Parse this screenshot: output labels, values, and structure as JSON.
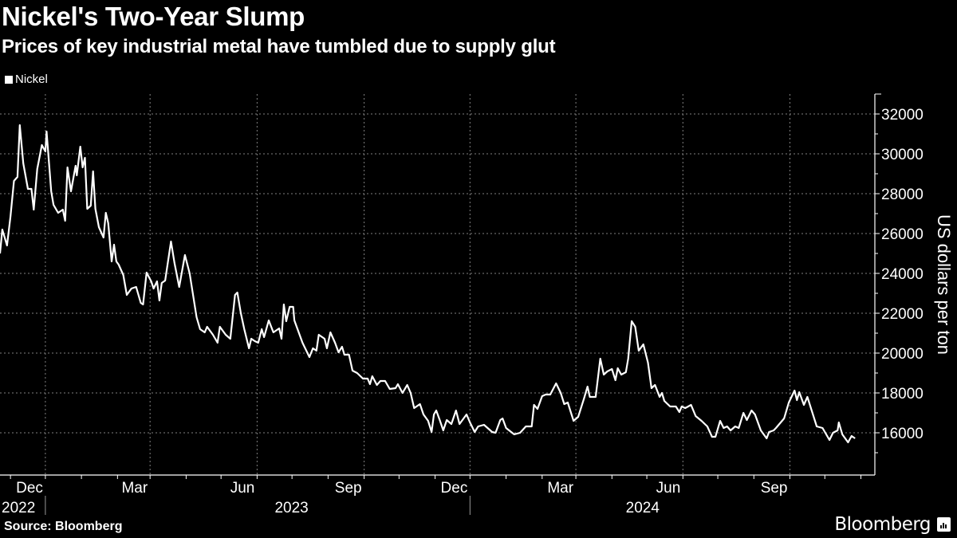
{
  "header": {
    "title": "Nickel's Two-Year Slump",
    "subtitle": "Prices of key industrial metal have tumbled due to supply glut"
  },
  "footer": {
    "source": "Source: Bloomberg",
    "brand": "Bloomberg"
  },
  "colors": {
    "background": "#000000",
    "line": "#ffffff",
    "grid": "#7f7f7f"
  },
  "chart_data": {
    "type": "line",
    "title": "Nickel's Two-Year Slump",
    "subtitle": "Prices of key industrial metal have tumbled due to supply glut",
    "ylabel": "US dollars per ton",
    "xlabel": "",
    "legend": {
      "position": "top-left",
      "entries": [
        "Nickel"
      ]
    },
    "grid": true,
    "y_axis_side": "right",
    "ylim": [
      13880,
      33000
    ],
    "xlim": [
      "2022-10-23",
      "2024-11-13"
    ],
    "y_ticks": [
      "16000",
      "18000",
      "20000",
      "22000",
      "24000",
      "26000",
      "28000",
      "30000",
      "32000"
    ],
    "x_ticks": [
      {
        "date": "2022-12-01",
        "label": "Dec"
      },
      {
        "date": "2023-03-01",
        "label": "Mar"
      },
      {
        "date": "2023-06-01",
        "label": "Jun"
      },
      {
        "date": "2023-09-01",
        "label": "Sep"
      },
      {
        "date": "2023-12-01",
        "label": "Dec"
      },
      {
        "date": "2024-03-01",
        "label": "Mar"
      },
      {
        "date": "2024-06-01",
        "label": "Jun"
      },
      {
        "date": "2024-09-01",
        "label": "Sep"
      }
    ],
    "year_labels": [
      "2022",
      "2023",
      "2024"
    ],
    "series": [
      {
        "name": "Nickel",
        "color": "#ffffff",
        "points": [
          [
            "2022-10-23",
            25000
          ],
          [
            "2022-10-25",
            26200
          ],
          [
            "2022-10-29",
            25400
          ],
          [
            "2022-11-01",
            26840
          ],
          [
            "2022-11-04",
            28640
          ],
          [
            "2022-11-07",
            28840
          ],
          [
            "2022-11-09",
            31440
          ],
          [
            "2022-11-12",
            29520
          ],
          [
            "2022-11-16",
            28240
          ],
          [
            "2022-11-19",
            28240
          ],
          [
            "2022-11-21",
            27200
          ],
          [
            "2022-11-24",
            29240
          ],
          [
            "2022-11-28",
            30440
          ],
          [
            "2022-12-01",
            30120
          ],
          [
            "2022-12-02",
            31120
          ],
          [
            "2022-12-06",
            28120
          ],
          [
            "2022-12-08",
            27440
          ],
          [
            "2022-12-12",
            27040
          ],
          [
            "2022-12-16",
            27200
          ],
          [
            "2022-12-18",
            26640
          ],
          [
            "2022-12-20",
            29320
          ],
          [
            "2022-12-23",
            28120
          ],
          [
            "2022-12-27",
            29400
          ],
          [
            "2022-12-28",
            28920
          ],
          [
            "2022-12-31",
            30360
          ],
          [
            "2023-01-02",
            29320
          ],
          [
            "2023-01-04",
            29800
          ],
          [
            "2023-01-06",
            27240
          ],
          [
            "2023-01-09",
            27400
          ],
          [
            "2023-01-11",
            29120
          ],
          [
            "2023-01-13",
            27240
          ],
          [
            "2023-01-16",
            26320
          ],
          [
            "2023-01-20",
            25800
          ],
          [
            "2023-01-22",
            27040
          ],
          [
            "2023-01-24",
            26520
          ],
          [
            "2023-01-27",
            24600
          ],
          [
            "2023-01-29",
            25440
          ],
          [
            "2023-01-31",
            24600
          ],
          [
            "2023-02-02",
            24440
          ],
          [
            "2023-02-06",
            23920
          ],
          [
            "2023-02-09",
            22920
          ],
          [
            "2023-02-13",
            23240
          ],
          [
            "2023-02-17",
            23320
          ],
          [
            "2023-02-21",
            22520
          ],
          [
            "2023-02-23",
            22440
          ],
          [
            "2023-02-26",
            24040
          ],
          [
            "2023-03-02",
            23600
          ],
          [
            "2023-03-04",
            23240
          ],
          [
            "2023-03-07",
            23600
          ],
          [
            "2023-03-09",
            22640
          ],
          [
            "2023-03-11",
            23520
          ],
          [
            "2023-03-14",
            23640
          ],
          [
            "2023-03-19",
            25600
          ],
          [
            "2023-03-22",
            24520
          ],
          [
            "2023-03-26",
            23320
          ],
          [
            "2023-03-31",
            24920
          ],
          [
            "2023-04-04",
            24000
          ],
          [
            "2023-04-10",
            21800
          ],
          [
            "2023-04-13",
            21200
          ],
          [
            "2023-04-17",
            21040
          ],
          [
            "2023-04-19",
            21320
          ],
          [
            "2023-04-24",
            20920
          ],
          [
            "2023-04-28",
            20520
          ],
          [
            "2023-04-30",
            21320
          ],
          [
            "2023-05-05",
            20920
          ],
          [
            "2023-05-09",
            20720
          ],
          [
            "2023-05-13",
            22920
          ],
          [
            "2023-05-15",
            23040
          ],
          [
            "2023-05-18",
            22000
          ],
          [
            "2023-05-21",
            21200
          ],
          [
            "2023-05-25",
            20240
          ],
          [
            "2023-05-27",
            20720
          ],
          [
            "2023-05-30",
            20600
          ],
          [
            "2023-06-02",
            20520
          ],
          [
            "2023-06-05",
            21200
          ],
          [
            "2023-06-07",
            20800
          ],
          [
            "2023-06-11",
            21640
          ],
          [
            "2023-06-15",
            21040
          ],
          [
            "2023-06-20",
            21240
          ],
          [
            "2023-06-22",
            20720
          ],
          [
            "2023-06-24",
            22440
          ],
          [
            "2023-06-26",
            21600
          ],
          [
            "2023-06-29",
            22320
          ],
          [
            "2023-07-02",
            22320
          ],
          [
            "2023-07-03",
            21640
          ],
          [
            "2023-07-10",
            20520
          ],
          [
            "2023-07-16",
            19800
          ],
          [
            "2023-07-19",
            20240
          ],
          [
            "2023-07-22",
            20120
          ],
          [
            "2023-07-24",
            20920
          ],
          [
            "2023-07-29",
            20720
          ],
          [
            "2023-07-31",
            20240
          ],
          [
            "2023-08-03",
            21040
          ],
          [
            "2023-08-07",
            20520
          ],
          [
            "2023-08-10",
            20040
          ],
          [
            "2023-08-13",
            20320
          ],
          [
            "2023-08-15",
            19920
          ],
          [
            "2023-08-19",
            19920
          ],
          [
            "2023-08-22",
            19120
          ],
          [
            "2023-08-26",
            19000
          ],
          [
            "2023-08-31",
            18720
          ],
          [
            "2023-09-04",
            18720
          ],
          [
            "2023-09-06",
            18440
          ],
          [
            "2023-09-08",
            18840
          ],
          [
            "2023-09-12",
            18400
          ],
          [
            "2023-09-15",
            18600
          ],
          [
            "2023-09-19",
            18600
          ],
          [
            "2023-09-23",
            18200
          ],
          [
            "2023-09-28",
            18240
          ],
          [
            "2023-09-30",
            18440
          ],
          [
            "2023-10-04",
            18000
          ],
          [
            "2023-10-08",
            18400
          ],
          [
            "2023-10-11",
            18000
          ],
          [
            "2023-10-14",
            17240
          ],
          [
            "2023-10-19",
            17440
          ],
          [
            "2023-10-22",
            16920
          ],
          [
            "2023-10-26",
            16600
          ],
          [
            "2023-10-29",
            16040
          ],
          [
            "2023-10-31",
            16920
          ],
          [
            "2023-11-02",
            17120
          ],
          [
            "2023-11-05",
            16640
          ],
          [
            "2023-11-08",
            16120
          ],
          [
            "2023-11-11",
            16640
          ],
          [
            "2023-11-15",
            16440
          ],
          [
            "2023-11-19",
            17120
          ],
          [
            "2023-11-22",
            16440
          ],
          [
            "2023-11-28",
            16920
          ],
          [
            "2023-12-01",
            16520
          ],
          [
            "2023-12-05",
            16040
          ],
          [
            "2023-12-08",
            16320
          ],
          [
            "2023-12-13",
            16400
          ],
          [
            "2023-12-20",
            16040
          ],
          [
            "2023-12-23",
            16000
          ],
          [
            "2023-12-27",
            16640
          ],
          [
            "2023-12-29",
            16720
          ],
          [
            "2024-01-01",
            16240
          ],
          [
            "2024-01-08",
            15920
          ],
          [
            "2024-01-13",
            16000
          ],
          [
            "2024-01-18",
            16320
          ],
          [
            "2024-01-23",
            16320
          ],
          [
            "2024-01-25",
            17400
          ],
          [
            "2024-01-28",
            17200
          ],
          [
            "2024-02-01",
            17840
          ],
          [
            "2024-02-04",
            17920
          ],
          [
            "2024-02-08",
            17920
          ],
          [
            "2024-02-13",
            18480
          ],
          [
            "2024-02-17",
            18000
          ],
          [
            "2024-02-20",
            17440
          ],
          [
            "2024-02-23",
            17520
          ],
          [
            "2024-02-28",
            16600
          ],
          [
            "2024-03-03",
            16800
          ],
          [
            "2024-03-08",
            17720
          ],
          [
            "2024-03-11",
            18320
          ],
          [
            "2024-03-13",
            17800
          ],
          [
            "2024-03-18",
            17800
          ],
          [
            "2024-03-22",
            19720
          ],
          [
            "2024-03-25",
            18920
          ],
          [
            "2024-03-28",
            19080
          ],
          [
            "2024-04-01",
            19200
          ],
          [
            "2024-04-04",
            18640
          ],
          [
            "2024-04-06",
            19240
          ],
          [
            "2024-04-09",
            18920
          ],
          [
            "2024-04-13",
            19040
          ],
          [
            "2024-04-15",
            19720
          ],
          [
            "2024-04-18",
            21600
          ],
          [
            "2024-04-21",
            21320
          ],
          [
            "2024-04-24",
            20120
          ],
          [
            "2024-04-28",
            20440
          ],
          [
            "2024-05-02",
            19520
          ],
          [
            "2024-05-05",
            18240
          ],
          [
            "2024-05-08",
            18400
          ],
          [
            "2024-05-12",
            17800
          ],
          [
            "2024-05-14",
            18000
          ],
          [
            "2024-05-16",
            17600
          ],
          [
            "2024-05-21",
            17320
          ],
          [
            "2024-05-26",
            17320
          ],
          [
            "2024-05-29",
            17040
          ],
          [
            "2024-05-31",
            17320
          ],
          [
            "2024-06-03",
            17240
          ],
          [
            "2024-06-08",
            17400
          ],
          [
            "2024-06-12",
            16840
          ],
          [
            "2024-06-17",
            16600
          ],
          [
            "2024-06-22",
            16320
          ],
          [
            "2024-06-26",
            15800
          ],
          [
            "2024-06-29",
            15800
          ],
          [
            "2024-07-03",
            16600
          ],
          [
            "2024-07-06",
            16240
          ],
          [
            "2024-07-09",
            16320
          ],
          [
            "2024-07-12",
            16120
          ],
          [
            "2024-07-16",
            16320
          ],
          [
            "2024-07-19",
            16240
          ],
          [
            "2024-07-23",
            17000
          ],
          [
            "2024-07-26",
            16640
          ],
          [
            "2024-07-30",
            17120
          ],
          [
            "2024-08-02",
            16920
          ],
          [
            "2024-08-07",
            16120
          ],
          [
            "2024-08-12",
            15720
          ],
          [
            "2024-08-14",
            16040
          ],
          [
            "2024-08-18",
            16120
          ],
          [
            "2024-08-20",
            16240
          ],
          [
            "2024-08-27",
            16720
          ],
          [
            "2024-08-31",
            17520
          ],
          [
            "2024-09-05",
            18120
          ],
          [
            "2024-09-07",
            17640
          ],
          [
            "2024-09-09",
            18040
          ],
          [
            "2024-09-13",
            17400
          ],
          [
            "2024-09-16",
            17800
          ],
          [
            "2024-09-24",
            16320
          ],
          [
            "2024-09-29",
            16240
          ],
          [
            "2024-10-05",
            15640
          ],
          [
            "2024-10-08",
            16000
          ],
          [
            "2024-10-12",
            16120
          ],
          [
            "2024-10-13",
            16520
          ],
          [
            "2024-10-16",
            15920
          ],
          [
            "2024-10-21",
            15520
          ],
          [
            "2024-10-24",
            15840
          ],
          [
            "2024-10-27",
            15720
          ]
        ]
      }
    ]
  }
}
